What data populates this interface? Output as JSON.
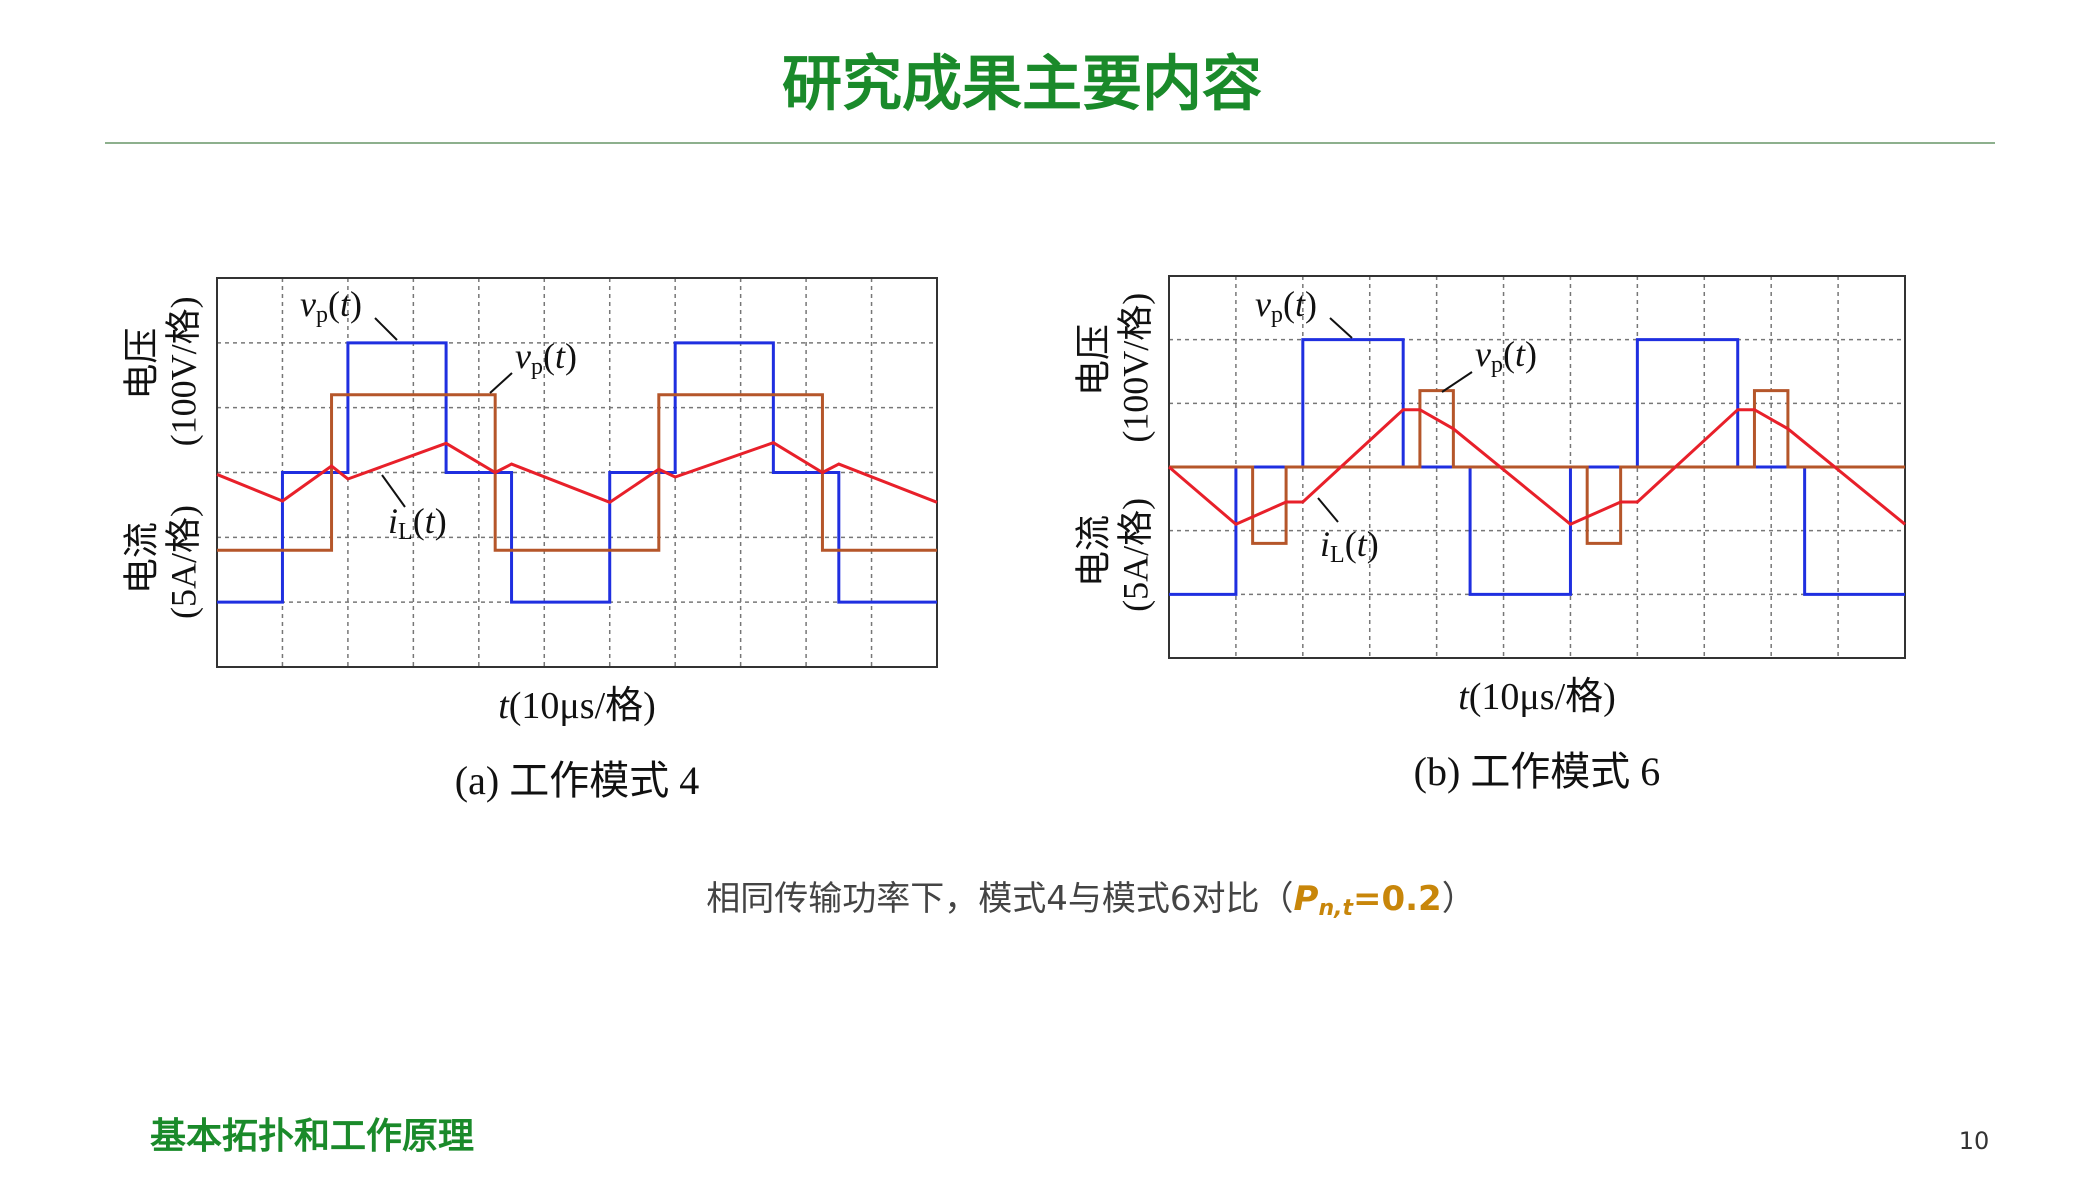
{
  "header": {
    "title": "研究成果主要内容"
  },
  "chart_data": [
    {
      "type": "line",
      "xlim": [
        0,
        11
      ],
      "ylim": [
        0,
        6
      ],
      "xticks": [
        0,
        1,
        2,
        3,
        4,
        5,
        6,
        7,
        8,
        9,
        10,
        11
      ],
      "yticks": [
        0,
        1,
        2,
        3,
        4,
        5,
        6
      ],
      "grid": true,
      "x_label": [
        "t",
        "(10μs/格)"
      ],
      "y_labels": [
        "电压",
        "(100V/格)",
        "电流",
        "(5A/格)"
      ],
      "caption": "(a)  工作模式 4",
      "annotations": [
        [
          "v",
          "p",
          "(",
          "t",
          ")"
        ],
        [
          "v",
          "p",
          "(",
          "t",
          ")"
        ],
        [
          "i",
          "L",
          "(",
          "t",
          ")"
        ]
      ],
      "series": [
        {
          "color": "#1f2fe0",
          "x": [
            0,
            1,
            1,
            2,
            2,
            3.5,
            3.5,
            4.5,
            4.5,
            6,
            6,
            7,
            7,
            8.5,
            8.5,
            9.5,
            9.5,
            11
          ],
          "values": [
            1,
            1,
            3,
            3,
            5,
            5,
            3,
            3,
            1,
            1,
            3,
            3,
            5,
            5,
            3,
            3,
            1,
            1
          ]
        },
        {
          "color": "#b5562a",
          "x": [
            0,
            1.75,
            1.75,
            4.25,
            4.25,
            6.75,
            6.75,
            9.25,
            9.25,
            11
          ],
          "values": [
            1.8,
            1.8,
            4.2,
            4.2,
            1.8,
            1.8,
            4.2,
            4.2,
            1.8,
            1.8
          ]
        },
        {
          "color": "#e8202a",
          "x": [
            0,
            1,
            1.75,
            2,
            3.5,
            4.25,
            4.5,
            6,
            6.75,
            7,
            8.5,
            9.25,
            9.5,
            11
          ],
          "values": [
            2.97,
            2.56,
            3.1,
            2.9,
            3.45,
            3.0,
            3.13,
            2.54,
            3.05,
            2.93,
            3.46,
            3.0,
            3.13,
            2.54
          ]
        }
      ]
    },
    {
      "type": "line",
      "xlim": [
        0,
        11
      ],
      "ylim": [
        0,
        6
      ],
      "xticks": [
        0,
        1,
        2,
        3,
        4,
        5,
        6,
        7,
        8,
        9,
        10,
        11
      ],
      "yticks": [
        0,
        1,
        2,
        3,
        4,
        5,
        6
      ],
      "grid": true,
      "x_label": [
        "t",
        "(10μs/格)"
      ],
      "y_labels": [
        "电压",
        "(100V/格)",
        "电流",
        "(5A/格)"
      ],
      "caption": "(b)  工作模式 6",
      "annotations": [
        [
          "v",
          "p",
          "(",
          "t",
          ")"
        ],
        [
          "v",
          "p",
          "(",
          "t",
          ")"
        ],
        [
          "i",
          "L",
          "(",
          "t",
          ")"
        ]
      ],
      "series": [
        {
          "color": "#1f2fe0",
          "x": [
            0,
            1,
            1,
            2,
            2,
            3.5,
            3.5,
            4.5,
            4.5,
            6,
            6,
            7,
            7,
            8.5,
            8.5,
            9.5,
            9.5,
            11
          ],
          "values": [
            1,
            1,
            3,
            3,
            5,
            5,
            3,
            3,
            1,
            1,
            3,
            3,
            5,
            5,
            3,
            3,
            1,
            1
          ]
        },
        {
          "color": "#b5562a",
          "x": [
            0,
            1.25,
            1.25,
            1.75,
            1.75,
            3.75,
            3.75,
            4.25,
            4.25,
            6.25,
            6.25,
            6.75,
            6.75,
            8.75,
            8.75,
            9.25,
            9.25,
            11
          ],
          "values": [
            3,
            3,
            1.8,
            1.8,
            3,
            3,
            4.2,
            4.2,
            3,
            3,
            1.8,
            1.8,
            3,
            3,
            4.2,
            4.2,
            3,
            3
          ]
        },
        {
          "color": "#e8202a",
          "x": [
            0,
            1,
            1.75,
            2,
            3.5,
            3.75,
            4.25,
            6,
            6.75,
            7,
            8.5,
            8.75,
            9.25,
            11
          ],
          "values": [
            3.0,
            2.1,
            2.45,
            2.45,
            3.9,
            3.9,
            3.6,
            2.1,
            2.45,
            2.45,
            3.9,
            3.9,
            3.6,
            2.1
          ]
        }
      ]
    }
  ],
  "note": [
    "相同传输功率下，模式4与模式6对比（",
    "P",
    "n,t",
    "=0.2",
    "）"
  ],
  "footer": {
    "section": "基本拓扑和工作原理",
    "page": "10"
  }
}
